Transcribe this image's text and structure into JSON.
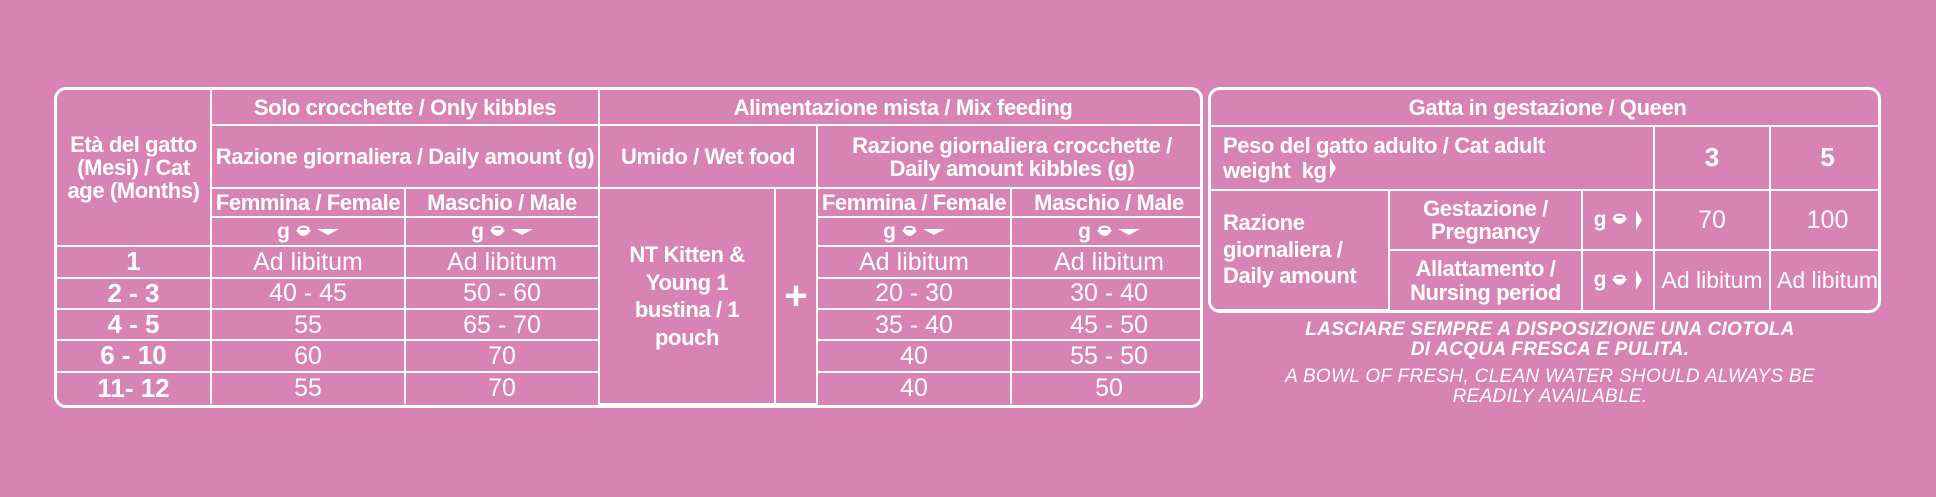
{
  "left_table": {
    "cat_age_header": "Età del gatto (Mesi) / Cat age (Months)",
    "only_kibbles": "Solo crocchette / Only kibbles",
    "daily_amount_g": "Razione giornaliera / Daily amount (g)",
    "mix_feeding": "Alimentazione mista / Mix feeding",
    "wet_food": "Umido / Wet food",
    "daily_amount_kibbles": "Razione giornaliera crocchette / Daily amount kibbles (g)",
    "female": "Femmina / Female",
    "male": "Maschio / Male",
    "unit_g": "g",
    "wet_product": "NT Kitten & Young 1 bustina / 1 pouch",
    "plus": "+",
    "rows": [
      {
        "age": "1",
        "only_f": "Ad libitum",
        "only_m": "Ad libitum",
        "mix_f": "Ad libitum",
        "mix_m": "Ad libitum"
      },
      {
        "age": "2 - 3",
        "only_f": "40 - 45",
        "only_m": "50 - 60",
        "mix_f": "20 - 30",
        "mix_m": "30 - 40"
      },
      {
        "age": "4 - 5",
        "only_f": "55",
        "only_m": "65 - 70",
        "mix_f": "35 - 40",
        "mix_m": "45 - 50"
      },
      {
        "age": "6 - 10",
        "only_f": "60",
        "only_m": "70",
        "mix_f": "40",
        "mix_m": "55 - 50"
      },
      {
        "age": "11- 12",
        "only_f": "55",
        "only_m": "70",
        "mix_f": "40",
        "mix_m": "50"
      }
    ]
  },
  "right_table": {
    "queen": "Gatta in gestazione / Queen",
    "adult_weight": "Peso del gatto adulto / Cat adult weight",
    "unit_kg": "kg",
    "weight_3": "3",
    "weight_5": "5",
    "daily_amount": "Razione giornaliera / Daily amount",
    "pregnancy": "Gestazione / Pregnancy",
    "nursing": "Allattamento / Nursing period",
    "unit_g": "g",
    "preg_3": "70",
    "preg_5": "100",
    "nurs_3": "Ad libitum",
    "nurs_5": "Ad libitum"
  },
  "notes": {
    "italian": "LASCIARE SEMPRE A DISPOSIZIONE UNA CIOTOLA DI ACQUA FRESCA E PULITA.",
    "english": "A BOWL OF FRESH, CLEAN WATER SHOULD ALWAYS BE READILY AVAILABLE."
  },
  "colors": {
    "background": "#d783b4",
    "foreground": "#ffffff"
  }
}
